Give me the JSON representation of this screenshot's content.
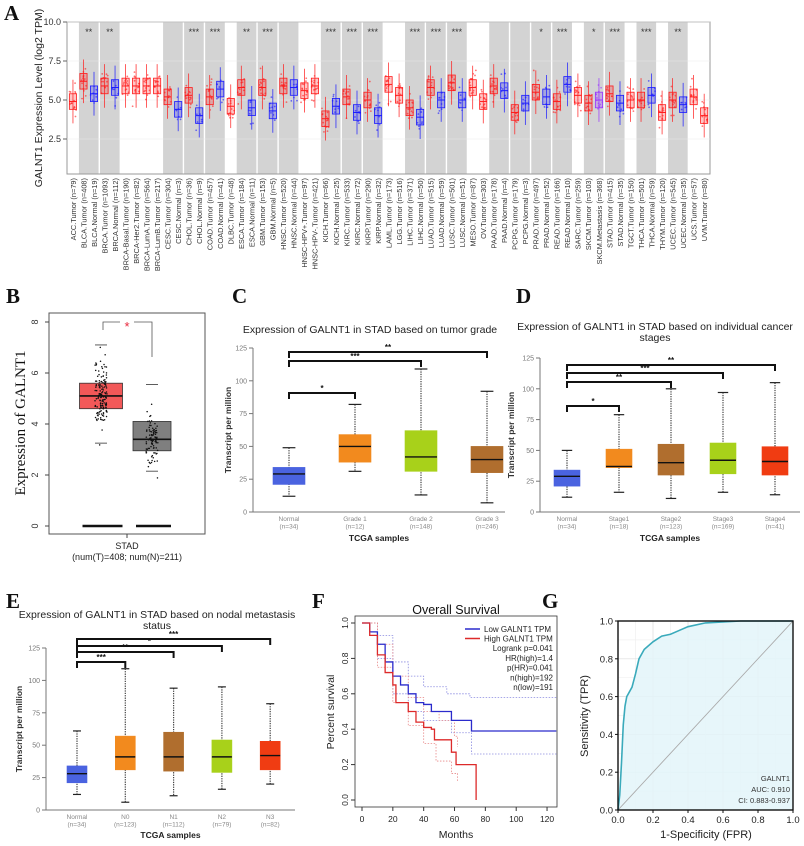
{
  "panel_labels": [
    "A",
    "B",
    "C",
    "D",
    "E",
    "F",
    "G"
  ],
  "chart_data": [
    {
      "type": "box",
      "ylabel": "GALNT1 Expression Level (log2 TPM)",
      "yticks": [
        "2.5",
        "5.0",
        "7.5",
        "10.0"
      ],
      "ytick_values": [
        2.5,
        5.0,
        7.5,
        10.0
      ],
      "ylim": [
        0.3,
        10
      ],
      "grid": true,
      "colors": {
        "tumor": "#ff1a1a",
        "normal": "#1a1aff",
        "metastasis": "#9933ff",
        "shade": "#d3d3d3"
      },
      "categories": [
        "ACC.Tumor (n=79)",
        "BLCA.Tumor (n=408)",
        "BLCA.Normal (n=19)",
        "BRCA.Tumor (n=1093)",
        "BRCA.Normal (n=112)",
        "BRCA-Basal.Tumor (n=190)",
        "BRCA-Her2.Tumor (n=82)",
        "BRCA-LumA.Tumor (n=564)",
        "BRCA-LumB.Tumor (n=217)",
        "CESC.Tumor (n=304)",
        "CESC.Normal (n=3)",
        "CHOL.Tumor (n=36)",
        "CHOL.Normal (n=9)",
        "COAD.Tumor (n=457)",
        "COAD.Normal (n=41)",
        "DLBC.Tumor (n=48)",
        "ESCA.Tumor (n=184)",
        "ESCA.Normal (n=11)",
        "GBM.Tumor (n=153)",
        "GBM.Normal (n=5)",
        "HNSC.Tumor (n=520)",
        "HNSC.Normal (n=44)",
        "HNSC-HPV+.Tumor (n=97)",
        "HNSC-HPV-.Tumor (n=421)",
        "KICH.Tumor (n=66)",
        "KICH.Normal (n=25)",
        "KIRC.Tumor (n=533)",
        "KIRC.Normal (n=72)",
        "KIRP.Tumor (n=290)",
        "KIRP.Normal (n=32)",
        "LAML.Tumor (n=173)",
        "LGG.Tumor (n=516)",
        "LIHC.Tumor (n=371)",
        "LIHC.Normal (n=50)",
        "LUAD.Tumor (n=515)",
        "LUAD.Normal (n=59)",
        "LUSC.Tumor (n=501)",
        "LUSC.Normal (n=51)",
        "MESO.Tumor (n=87)",
        "OV.Tumor (n=303)",
        "PAAD.Tumor (n=178)",
        "PAAD.Normal (n=4)",
        "PCPG.Tumor (n=179)",
        "PCPG.Normal (n=3)",
        "PRAD.Tumor (n=497)",
        "PRAD.Normal (n=52)",
        "READ.Tumor (n=166)",
        "READ.Normal (n=10)",
        "SARC.Tumor (n=259)",
        "SKCM.Tumor (n=103)",
        "SKCM.Metastasis (n=368)",
        "STAD.Tumor (n=415)",
        "STAD.Normal (n=35)",
        "TGCT.Tumor (n=150)",
        "THCA.Tumor (n=501)",
        "THCA.Normal (n=59)",
        "THYM.Tumor (n=120)",
        "UCEC.Tumor (n=545)",
        "UCEC.Normal (n=35)",
        "UCS.Tumor (n=57)",
        "UVM.Tumor (n=80)"
      ],
      "medians": [
        4.9,
        6.2,
        5.4,
        5.9,
        5.8,
        5.9,
        5.9,
        5.9,
        5.9,
        5.2,
        4.4,
        5.3,
        4.0,
        5.2,
        5.7,
        4.6,
        5.8,
        4.5,
        5.8,
        4.3,
        5.9,
        5.8,
        5.6,
        5.9,
        3.8,
        4.6,
        5.2,
        4.2,
        5.0,
        4.0,
        6.0,
        5.3,
        4.5,
        3.9,
        5.8,
        5.0,
        6.1,
        5.0,
        5.8,
        4.9,
        5.9,
        5.6,
        4.2,
        4.8,
        5.5,
        5.2,
        4.9,
        6.0,
        5.3,
        4.8,
        5.0,
        5.4,
        4.8,
        5.0,
        5.0,
        5.3,
        4.2,
        5.0,
        4.7,
        5.2,
        4.0
      ],
      "significance": [
        {
          "tumor_index": 1,
          "label": "**"
        },
        {
          "tumor_index": 3,
          "label": "**"
        },
        {
          "tumor_index": 11,
          "label": "***"
        },
        {
          "tumor_index": 13,
          "label": "***"
        },
        {
          "tumor_index": 16,
          "label": "**"
        },
        {
          "tumor_index": 18,
          "label": "***"
        },
        {
          "tumor_index": 24,
          "label": "***"
        },
        {
          "tumor_index": 26,
          "label": "***"
        },
        {
          "tumor_index": 28,
          "label": "***"
        },
        {
          "tumor_index": 32,
          "label": "***"
        },
        {
          "tumor_index": 34,
          "label": "***"
        },
        {
          "tumor_index": 36,
          "label": "***"
        },
        {
          "tumor_index": 44,
          "label": "*"
        },
        {
          "tumor_index": 46,
          "label": "***"
        },
        {
          "tumor_index": 49,
          "label": "*"
        },
        {
          "tumor_index": 51,
          "label": "***"
        },
        {
          "tumor_index": 54,
          "label": "***"
        },
        {
          "tumor_index": 57,
          "label": "**"
        }
      ]
    },
    {
      "type": "box",
      "ylabel": "Expression of GALNT1",
      "yticks": [
        "0",
        "2",
        "4",
        "6",
        "8"
      ],
      "ytick_values": [
        0,
        2,
        4,
        6,
        8
      ],
      "ylim": [
        0,
        8.2
      ],
      "xlabel": "STAD",
      "xsub": "(num(T)=408; num(N)=211)",
      "groups": [
        {
          "color": "#f25858",
          "min": 3.25,
          "q1": 4.6,
          "median": 5.1,
          "q3": 5.6,
          "max": 7.1
        },
        {
          "color": "#7f7f7f",
          "min": 2.15,
          "q1": 2.95,
          "median": 3.4,
          "q3": 4.1,
          "max": 5.55
        }
      ],
      "significance": "*",
      "significance_color": "#e8283c"
    },
    {
      "type": "box",
      "title_lines": [
        "Expression of GALNT1 in STAD based on tumor grade"
      ],
      "ylabel": "Transcript per million",
      "xlabel": "TCGA samples",
      "yticks": [
        "0",
        "25",
        "50",
        "75",
        "100",
        "125"
      ],
      "ytick_values": [
        0,
        25,
        50,
        75,
        100,
        125
      ],
      "ylim": [
        0,
        125
      ],
      "categories": [
        {
          "label": "Normal",
          "n": "(n=34)",
          "color": "#4a63e0",
          "min": 12,
          "q1": 21,
          "median": 29,
          "q3": 34,
          "max": 49
        },
        {
          "label": "Grade 1",
          "n": "(n=12)",
          "color": "#f28a1e",
          "min": 31,
          "q1": 38,
          "median": 50,
          "q3": 59,
          "max": 82
        },
        {
          "label": "Grade 2",
          "n": "(n=148)",
          "color": "#a8d11a",
          "min": 13,
          "q1": 31,
          "median": 42,
          "q3": 62,
          "max": 109
        },
        {
          "label": "Grade 3",
          "n": "(n=246)",
          "color": "#b06e2e",
          "min": 7,
          "q1": 30,
          "median": 40,
          "q3": 50,
          "max": 92
        }
      ],
      "significance": [
        {
          "to": 1,
          "label": "*"
        },
        {
          "to": 2,
          "label": "***"
        },
        {
          "to": 3,
          "label": "**"
        }
      ]
    },
    {
      "type": "box",
      "title_lines": [
        "Expression of GALNT1 in STAD based on individual cancer",
        "stages"
      ],
      "ylabel": "Transcript per million",
      "xlabel": "TCGA samples",
      "yticks": [
        "0",
        "25",
        "50",
        "75",
        "100",
        "125"
      ],
      "ytick_values": [
        0,
        25,
        50,
        75,
        100,
        125
      ],
      "ylim": [
        0,
        125
      ],
      "categories": [
        {
          "label": "Normal",
          "n": "(n=34)",
          "color": "#4a63e0",
          "min": 12,
          "q1": 21,
          "median": 29,
          "q3": 34,
          "max": 50
        },
        {
          "label": "Stage1",
          "n": "(n=18)",
          "color": "#f28a1e",
          "min": 16,
          "q1": 36,
          "median": 37,
          "q3": 51,
          "max": 79
        },
        {
          "label": "Stage2",
          "n": "(n=123)",
          "color": "#b06e2e",
          "min": 11,
          "q1": 30,
          "median": 40,
          "q3": 55,
          "max": 100
        },
        {
          "label": "Stage3",
          "n": "(n=169)",
          "color": "#a8d11a",
          "min": 16,
          "q1": 31,
          "median": 42,
          "q3": 56,
          "max": 97
        },
        {
          "label": "Stage4",
          "n": "(n=41)",
          "color": "#f03c12",
          "min": 14,
          "q1": 30,
          "median": 41,
          "q3": 53,
          "max": 105
        }
      ],
      "significance": [
        {
          "to": 1,
          "label": "*"
        },
        {
          "to": 2,
          "label": "**"
        },
        {
          "to": 3,
          "label": "***"
        },
        {
          "to": 4,
          "label": "**"
        }
      ]
    },
    {
      "type": "box",
      "title_lines": [
        "Expression of GALNT1 in STAD based on nodal metastasis",
        "status"
      ],
      "ylabel": "Transcript per million",
      "xlabel": "TCGA samples",
      "yticks": [
        "0",
        "25",
        "50",
        "75",
        "100",
        "125"
      ],
      "ytick_values": [
        0,
        25,
        50,
        75,
        100,
        125
      ],
      "ylim": [
        0,
        125
      ],
      "categories": [
        {
          "label": "Normal",
          "n": "(n=34)",
          "color": "#4a63e0",
          "min": 12,
          "q1": 21,
          "median": 28,
          "q3": 34,
          "max": 61
        },
        {
          "label": "N0",
          "n": "(n=123)",
          "color": "#f28a1e",
          "min": 6,
          "q1": 31,
          "median": 41,
          "q3": 57,
          "max": 109
        },
        {
          "label": "N1",
          "n": "(n=112)",
          "color": "#b06e2e",
          "min": 11,
          "q1": 30,
          "median": 41,
          "q3": 60,
          "max": 94
        },
        {
          "label": "N2",
          "n": "(n=79)",
          "color": "#a8d11a",
          "min": 16,
          "q1": 29,
          "median": 41,
          "q3": 54,
          "max": 95
        },
        {
          "label": "N3",
          "n": "(n=82)",
          "color": "#f03c12",
          "min": 20,
          "q1": 31,
          "median": 42,
          "q3": 53,
          "max": 82
        }
      ],
      "significance": [
        {
          "to": 1,
          "label": "***"
        },
        {
          "to": 2,
          "label": "**"
        },
        {
          "to": 3,
          "label": "*"
        },
        {
          "to": 4,
          "label": "***"
        }
      ]
    },
    {
      "type": "line",
      "title": "Overall Survival",
      "xlabel": "Months",
      "ylabel": "Percent survival",
      "xticks": [
        "0",
        "20",
        "40",
        "60",
        "80",
        "100",
        "120"
      ],
      "xtick_values": [
        0,
        20,
        40,
        60,
        80,
        100,
        120
      ],
      "yticks": [
        "0.0",
        "0.2",
        "0.4",
        "0.6",
        "0.8",
        "1.0"
      ],
      "ytick_values": [
        0,
        0.2,
        0.4,
        0.6,
        0.8,
        1.0
      ],
      "xlim": [
        0,
        125
      ],
      "ylim": [
        0,
        1
      ],
      "legend_position": "top-right",
      "series": [
        {
          "name": "Low GALNT1 TPM",
          "color": "#2b2bcc",
          "points": [
            [
              0,
              1
            ],
            [
              5,
              0.95
            ],
            [
              10,
              0.88
            ],
            [
              15,
              0.78
            ],
            [
              20,
              0.7
            ],
            [
              25,
              0.65
            ],
            [
              30,
              0.6
            ],
            [
              35,
              0.55
            ],
            [
              40,
              0.54
            ],
            [
              45,
              0.5
            ],
            [
              58,
              0.45
            ],
            [
              71,
              0.39
            ],
            [
              126,
              0.39
            ]
          ]
        },
        {
          "name": "High GALNT1 TPM",
          "color": "#dd2a2a",
          "points": [
            [
              0,
              1
            ],
            [
              5,
              0.93
            ],
            [
              10,
              0.82
            ],
            [
              15,
              0.72
            ],
            [
              20,
              0.65
            ],
            [
              22,
              0.55
            ],
            [
              30,
              0.5
            ],
            [
              35,
              0.44
            ],
            [
              40,
              0.41
            ],
            [
              45,
              0.4
            ],
            [
              47,
              0.34
            ],
            [
              58,
              0.27
            ],
            [
              61,
              0.2
            ],
            [
              74,
              0.2
            ],
            [
              74,
              0
            ]
          ]
        }
      ],
      "confidence_bands": [
        {
          "color": "#8a8ae0",
          "points": [
            [
              0,
              1
            ],
            [
              10,
              0.93
            ],
            [
              20,
              0.78
            ],
            [
              30,
              0.7
            ],
            [
              40,
              0.64
            ],
            [
              55,
              0.6
            ],
            [
              70,
              0.58
            ],
            [
              126,
              0.58
            ]
          ]
        },
        {
          "color": "#8a8ae0",
          "points": [
            [
              0,
              1
            ],
            [
              10,
              0.8
            ],
            [
              20,
              0.6
            ],
            [
              30,
              0.5
            ],
            [
              40,
              0.45
            ],
            [
              58,
              0.38
            ],
            [
              71,
              0.26
            ],
            [
              126,
              0.26
            ]
          ]
        },
        {
          "color": "#e88a8a",
          "points": [
            [
              0,
              1
            ],
            [
              10,
              0.88
            ],
            [
              20,
              0.7
            ],
            [
              30,
              0.58
            ],
            [
              40,
              0.5
            ],
            [
              50,
              0.45
            ],
            [
              60,
              0.36
            ],
            [
              62,
              0.3
            ]
          ]
        },
        {
          "color": "#e88a8a",
          "points": [
            [
              0,
              1
            ],
            [
              10,
              0.75
            ],
            [
              20,
              0.55
            ],
            [
              30,
              0.42
            ],
            [
              40,
              0.32
            ],
            [
              48,
              0.22
            ],
            [
              58,
              0.15
            ],
            [
              62,
              0.1
            ]
          ]
        }
      ],
      "stats": [
        "Logrank p=0.041",
        "HR(high)=1.4",
        "p(HR)=0.041",
        "n(high)=192",
        "n(low)=191"
      ]
    },
    {
      "type": "line",
      "xlabel": "1-Specificity (FPR)",
      "ylabel": "Sensitivity (TPR)",
      "ticks": [
        "0.0",
        "0.2",
        "0.4",
        "0.6",
        "0.8",
        "1.0"
      ],
      "tick_values": [
        0,
        0.2,
        0.4,
        0.6,
        0.8,
        1.0
      ],
      "xlim": [
        0,
        1
      ],
      "ylim": [
        0,
        1
      ],
      "grid": true,
      "color": "#3aaabb",
      "fill": "#e3f5f9",
      "points": [
        [
          0,
          0
        ],
        [
          0.01,
          0.08
        ],
        [
          0.02,
          0.25
        ],
        [
          0.03,
          0.45
        ],
        [
          0.04,
          0.55
        ],
        [
          0.05,
          0.6
        ],
        [
          0.08,
          0.65
        ],
        [
          0.1,
          0.72
        ],
        [
          0.12,
          0.8
        ],
        [
          0.15,
          0.85
        ],
        [
          0.2,
          0.89
        ],
        [
          0.25,
          0.92
        ],
        [
          0.3,
          0.93
        ],
        [
          0.35,
          0.95
        ],
        [
          0.4,
          0.97
        ],
        [
          0.5,
          0.99
        ],
        [
          0.7,
          1.0
        ],
        [
          1,
          1
        ]
      ],
      "label": "GALNT1",
      "auc": "AUC: 0.910",
      "ci": "CI: 0.883-0.937"
    }
  ]
}
